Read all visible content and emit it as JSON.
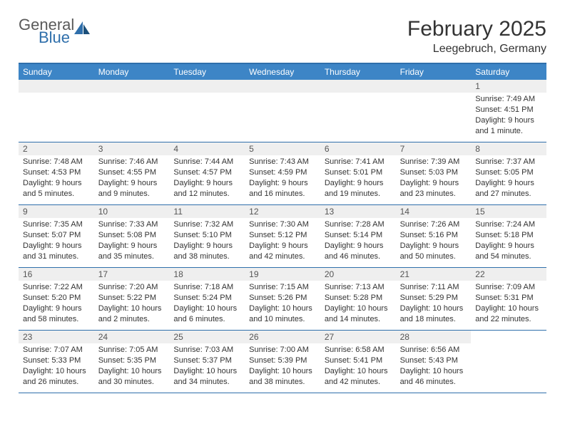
{
  "logo": {
    "general": "General",
    "blue": "Blue"
  },
  "title": "February 2025",
  "location": "Leegebruch, Germany",
  "colors": {
    "header_bg": "#3d85c6",
    "border": "#2f6fab",
    "daynum_bg": "#efefef",
    "text": "#333333"
  },
  "day_headers": [
    "Sunday",
    "Monday",
    "Tuesday",
    "Wednesday",
    "Thursday",
    "Friday",
    "Saturday"
  ],
  "leading_blanks": 6,
  "days": [
    {
      "n": 1,
      "sunrise": "Sunrise: 7:49 AM",
      "sunset": "Sunset: 4:51 PM",
      "daylight": "Daylight: 9 hours and 1 minute."
    },
    {
      "n": 2,
      "sunrise": "Sunrise: 7:48 AM",
      "sunset": "Sunset: 4:53 PM",
      "daylight": "Daylight: 9 hours and 5 minutes."
    },
    {
      "n": 3,
      "sunrise": "Sunrise: 7:46 AM",
      "sunset": "Sunset: 4:55 PM",
      "daylight": "Daylight: 9 hours and 9 minutes."
    },
    {
      "n": 4,
      "sunrise": "Sunrise: 7:44 AM",
      "sunset": "Sunset: 4:57 PM",
      "daylight": "Daylight: 9 hours and 12 minutes."
    },
    {
      "n": 5,
      "sunrise": "Sunrise: 7:43 AM",
      "sunset": "Sunset: 4:59 PM",
      "daylight": "Daylight: 9 hours and 16 minutes."
    },
    {
      "n": 6,
      "sunrise": "Sunrise: 7:41 AM",
      "sunset": "Sunset: 5:01 PM",
      "daylight": "Daylight: 9 hours and 19 minutes."
    },
    {
      "n": 7,
      "sunrise": "Sunrise: 7:39 AM",
      "sunset": "Sunset: 5:03 PM",
      "daylight": "Daylight: 9 hours and 23 minutes."
    },
    {
      "n": 8,
      "sunrise": "Sunrise: 7:37 AM",
      "sunset": "Sunset: 5:05 PM",
      "daylight": "Daylight: 9 hours and 27 minutes."
    },
    {
      "n": 9,
      "sunrise": "Sunrise: 7:35 AM",
      "sunset": "Sunset: 5:07 PM",
      "daylight": "Daylight: 9 hours and 31 minutes."
    },
    {
      "n": 10,
      "sunrise": "Sunrise: 7:33 AM",
      "sunset": "Sunset: 5:08 PM",
      "daylight": "Daylight: 9 hours and 35 minutes."
    },
    {
      "n": 11,
      "sunrise": "Sunrise: 7:32 AM",
      "sunset": "Sunset: 5:10 PM",
      "daylight": "Daylight: 9 hours and 38 minutes."
    },
    {
      "n": 12,
      "sunrise": "Sunrise: 7:30 AM",
      "sunset": "Sunset: 5:12 PM",
      "daylight": "Daylight: 9 hours and 42 minutes."
    },
    {
      "n": 13,
      "sunrise": "Sunrise: 7:28 AM",
      "sunset": "Sunset: 5:14 PM",
      "daylight": "Daylight: 9 hours and 46 minutes."
    },
    {
      "n": 14,
      "sunrise": "Sunrise: 7:26 AM",
      "sunset": "Sunset: 5:16 PM",
      "daylight": "Daylight: 9 hours and 50 minutes."
    },
    {
      "n": 15,
      "sunrise": "Sunrise: 7:24 AM",
      "sunset": "Sunset: 5:18 PM",
      "daylight": "Daylight: 9 hours and 54 minutes."
    },
    {
      "n": 16,
      "sunrise": "Sunrise: 7:22 AM",
      "sunset": "Sunset: 5:20 PM",
      "daylight": "Daylight: 9 hours and 58 minutes."
    },
    {
      "n": 17,
      "sunrise": "Sunrise: 7:20 AM",
      "sunset": "Sunset: 5:22 PM",
      "daylight": "Daylight: 10 hours and 2 minutes."
    },
    {
      "n": 18,
      "sunrise": "Sunrise: 7:18 AM",
      "sunset": "Sunset: 5:24 PM",
      "daylight": "Daylight: 10 hours and 6 minutes."
    },
    {
      "n": 19,
      "sunrise": "Sunrise: 7:15 AM",
      "sunset": "Sunset: 5:26 PM",
      "daylight": "Daylight: 10 hours and 10 minutes."
    },
    {
      "n": 20,
      "sunrise": "Sunrise: 7:13 AM",
      "sunset": "Sunset: 5:28 PM",
      "daylight": "Daylight: 10 hours and 14 minutes."
    },
    {
      "n": 21,
      "sunrise": "Sunrise: 7:11 AM",
      "sunset": "Sunset: 5:29 PM",
      "daylight": "Daylight: 10 hours and 18 minutes."
    },
    {
      "n": 22,
      "sunrise": "Sunrise: 7:09 AM",
      "sunset": "Sunset: 5:31 PM",
      "daylight": "Daylight: 10 hours and 22 minutes."
    },
    {
      "n": 23,
      "sunrise": "Sunrise: 7:07 AM",
      "sunset": "Sunset: 5:33 PM",
      "daylight": "Daylight: 10 hours and 26 minutes."
    },
    {
      "n": 24,
      "sunrise": "Sunrise: 7:05 AM",
      "sunset": "Sunset: 5:35 PM",
      "daylight": "Daylight: 10 hours and 30 minutes."
    },
    {
      "n": 25,
      "sunrise": "Sunrise: 7:03 AM",
      "sunset": "Sunset: 5:37 PM",
      "daylight": "Daylight: 10 hours and 34 minutes."
    },
    {
      "n": 26,
      "sunrise": "Sunrise: 7:00 AM",
      "sunset": "Sunset: 5:39 PM",
      "daylight": "Daylight: 10 hours and 38 minutes."
    },
    {
      "n": 27,
      "sunrise": "Sunrise: 6:58 AM",
      "sunset": "Sunset: 5:41 PM",
      "daylight": "Daylight: 10 hours and 42 minutes."
    },
    {
      "n": 28,
      "sunrise": "Sunrise: 6:56 AM",
      "sunset": "Sunset: 5:43 PM",
      "daylight": "Daylight: 10 hours and 46 minutes."
    }
  ]
}
